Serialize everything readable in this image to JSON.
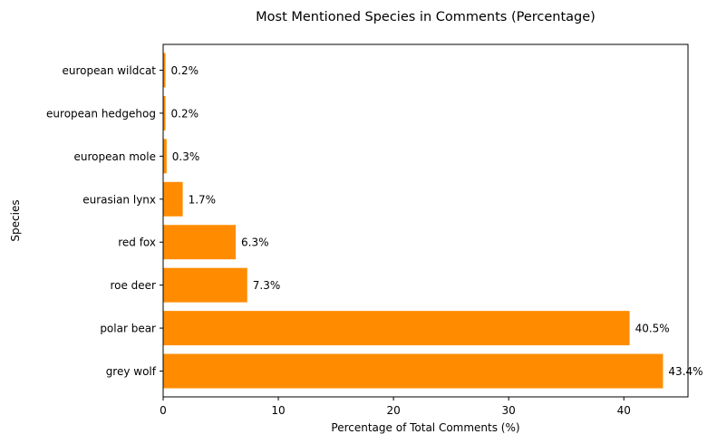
{
  "chart_data": {
    "type": "bar",
    "orientation": "horizontal",
    "title": "Most Mentioned Species in Comments (Percentage)",
    "xlabel": "Percentage of Total Comments (%)",
    "ylabel": "Species",
    "categories": [
      "grey wolf",
      "polar bear",
      "roe deer",
      "red fox",
      "eurasian lynx",
      "european mole",
      "european hedgehog",
      "european wildcat"
    ],
    "values": [
      43.4,
      40.5,
      7.3,
      6.3,
      1.7,
      0.3,
      0.2,
      0.2
    ],
    "value_labels": [
      "43.4%",
      "40.5%",
      "7.3%",
      "6.3%",
      "1.7%",
      "0.3%",
      "0.2%",
      "0.2%"
    ],
    "xlim": [
      0,
      45.57
    ],
    "xticks": [
      0,
      10,
      20,
      30,
      40
    ],
    "xtick_labels": [
      "0",
      "10",
      "20",
      "30",
      "40"
    ],
    "bar_color": "#ff8c00",
    "grid": false,
    "legend": "none"
  }
}
